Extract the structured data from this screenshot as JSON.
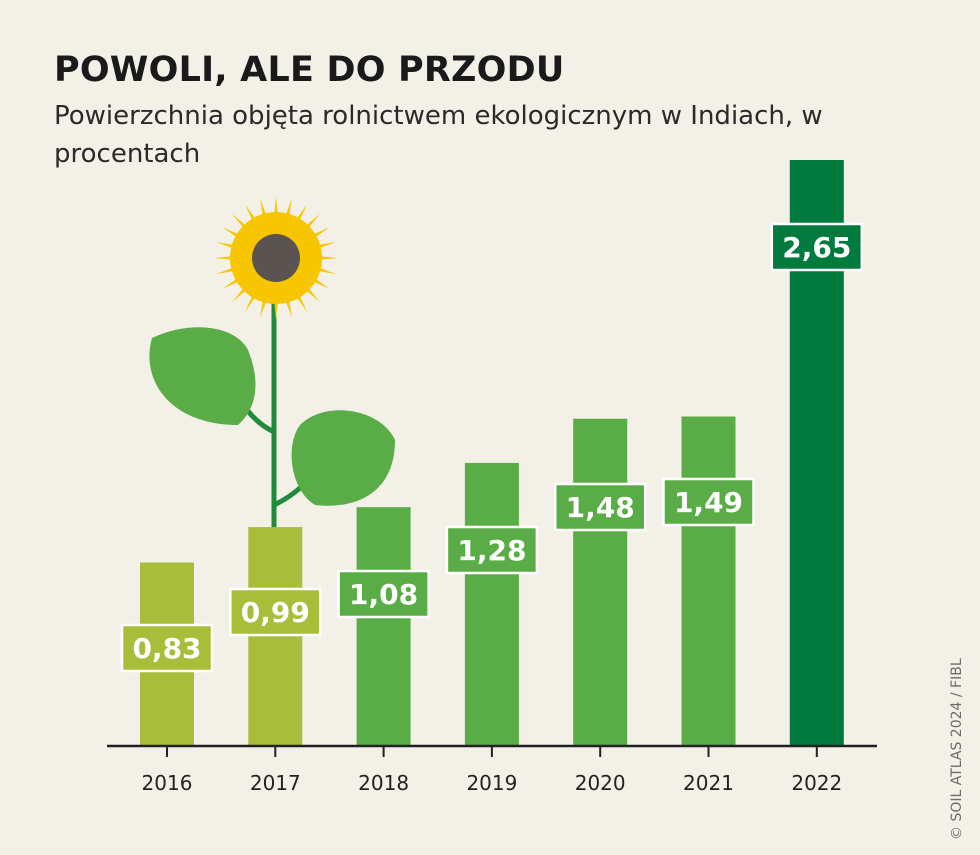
{
  "chart_data": {
    "type": "bar",
    "title": "POWOLI, ALE DO PRZODU",
    "subtitle": "Powierzchnia objęta rolnictwem ekologicznym w Indiach, w procentach",
    "categories": [
      "2016",
      "2017",
      "2018",
      "2019",
      "2020",
      "2021",
      "2022"
    ],
    "values": [
      0.83,
      0.99,
      1.08,
      1.28,
      1.48,
      1.49,
      2.65
    ],
    "value_labels": [
      "0,83",
      "0,99",
      "1,08",
      "1,28",
      "1,48",
      "1,49",
      "2,65"
    ],
    "bar_colors": [
      "#a8bd3a",
      "#a8bd3a",
      "#5aad46",
      "#5aad46",
      "#5aad46",
      "#5aad46",
      "#007a3d"
    ],
    "xlabel": "",
    "ylabel": "",
    "ylim": [
      0,
      2.65
    ],
    "grid": false,
    "legend": "none"
  },
  "credit": "© SOIL ATLAS 2024 / FIBL",
  "colors": {
    "background": "#f3f0e8",
    "petals": "#f7c600",
    "disc": "#5a5350",
    "stem": "#1e8c3a",
    "leaf": "#5aad46"
  }
}
